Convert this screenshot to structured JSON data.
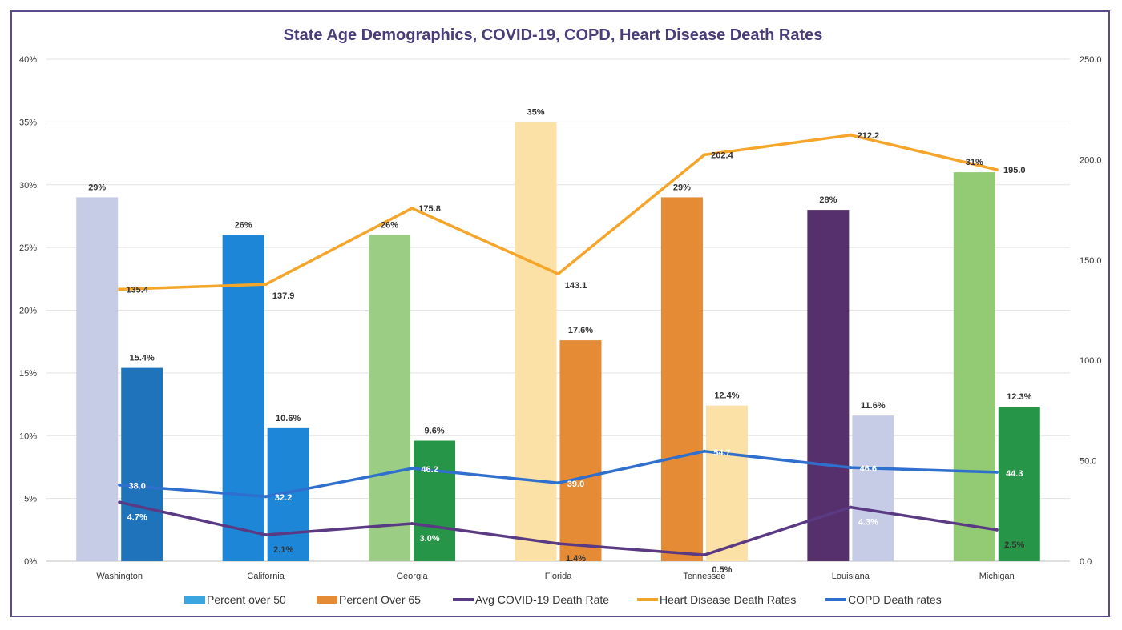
{
  "chart_data": {
    "type": "bar",
    "title": "State Age Demographics, COVID-19, COPD, Heart Disease Death Rates",
    "categories": [
      "Washington",
      "California",
      "Georgia",
      "Florida",
      "Tennessee",
      "Louisiana",
      "Michigan"
    ],
    "y_left": {
      "min": 0,
      "max": 40,
      "step": 5,
      "format": "percent"
    },
    "y_right": {
      "min": 0,
      "max": 250,
      "step": 50,
      "format": "decimal1"
    },
    "grid": true,
    "legend_position": "bottom",
    "series": [
      {
        "name": "Percent over 50",
        "kind": "bar",
        "axis": "left",
        "values": [
          29,
          26,
          26,
          35,
          29,
          28,
          31
        ],
        "labels": [
          "29%",
          "26%",
          "26%",
          "35%",
          "29%",
          "28%",
          "31%"
        ],
        "colors": [
          "#c6cbe6",
          "#1e86d6",
          "#9bcd85",
          "#fbe1a5",
          "#e58b35",
          "#56306c",
          "#93cb74"
        ],
        "legend_color": "#3aa5de"
      },
      {
        "name": "Percent Over 65",
        "kind": "bar",
        "axis": "left",
        "values": [
          15.4,
          10.6,
          9.6,
          17.6,
          12.4,
          11.6,
          12.3
        ],
        "labels": [
          "15.4%",
          "10.6%",
          "9.6%",
          "17.6%",
          "12.4%",
          "11.6%",
          "12.3%"
        ],
        "colors": [
          "#1f73bb",
          "#1e86d6",
          "#279547",
          "#e58b35",
          "#fbe1a5",
          "#c6cbe6",
          "#279547"
        ],
        "legend_color": "#e58b35"
      },
      {
        "name": "Avg COVID-19 Death Rate",
        "kind": "line",
        "axis": "left",
        "values": [
          4.7,
          2.1,
          3.0,
          1.4,
          0.5,
          4.3,
          2.5
        ],
        "labels": [
          "4.7%",
          "2.1%",
          "3.0%",
          "1.4%",
          "0.5%",
          "4.3%",
          "2.5%"
        ],
        "color": "#5a3a83"
      },
      {
        "name": "Heart Disease Death Rates",
        "kind": "line",
        "axis": "right",
        "values": [
          135.4,
          137.9,
          175.8,
          143.1,
          202.4,
          212.2,
          195.0
        ],
        "labels": [
          "135.4",
          "137.9",
          "175.8",
          "143.1",
          "202.4",
          "212.2",
          "195.0"
        ],
        "color": "#f5a52a"
      },
      {
        "name": "COPD Death rates",
        "kind": "line",
        "axis": "right",
        "values": [
          38.0,
          32.2,
          46.2,
          39.0,
          54.7,
          46.6,
          44.3
        ],
        "labels": [
          "38.0",
          "32.2",
          "46.2",
          "39.0",
          "54.7",
          "46.6",
          "44.3"
        ],
        "color": "#2f6fcd"
      }
    ]
  }
}
